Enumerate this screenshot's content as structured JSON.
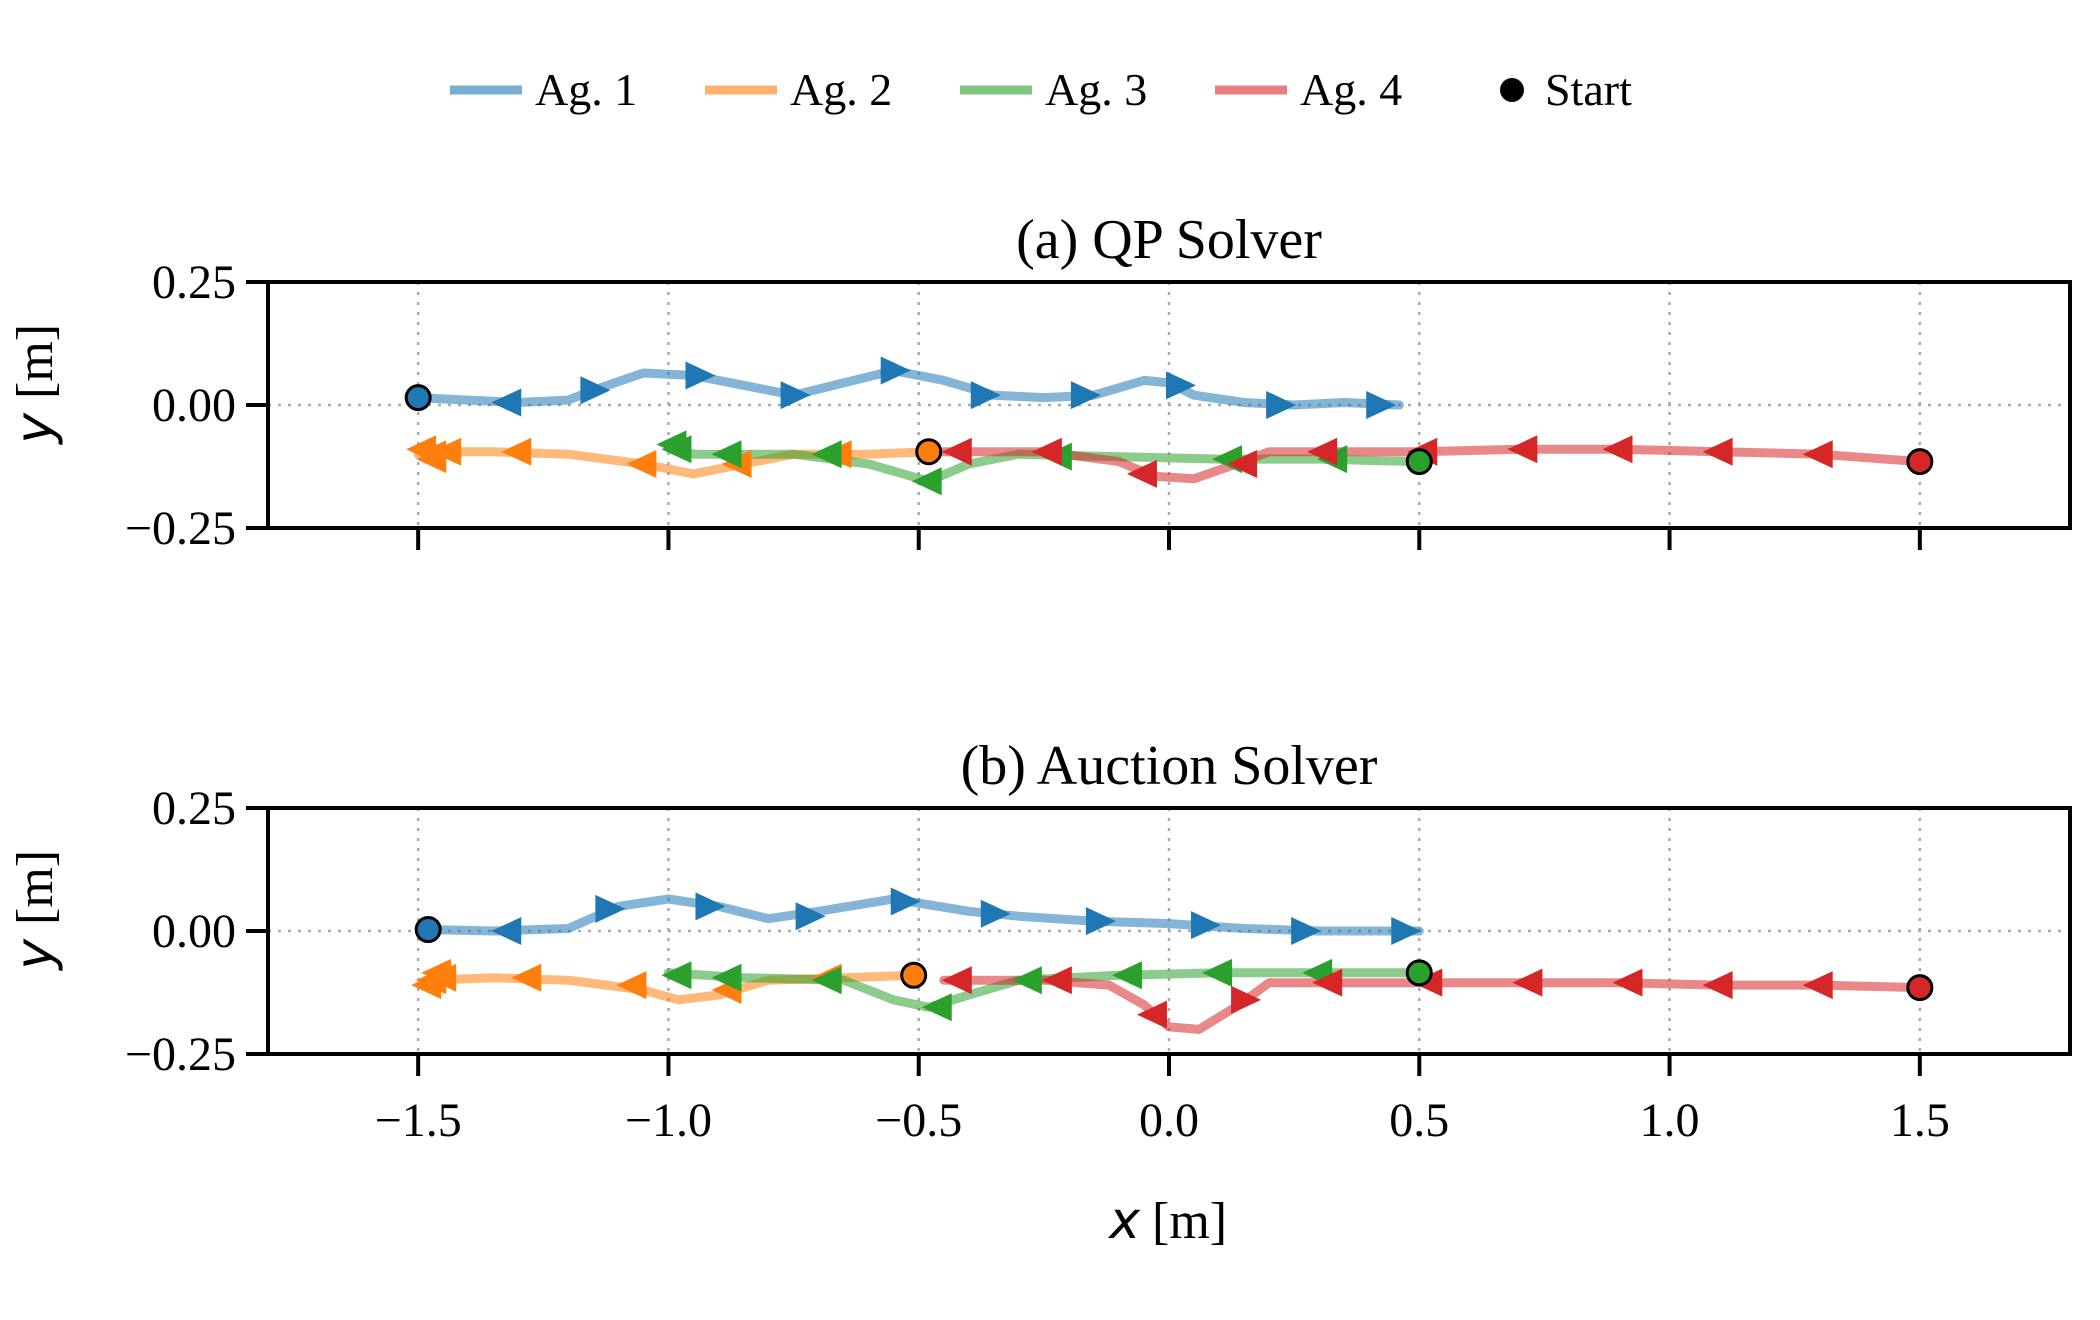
{
  "chart_data": {
    "type": "line",
    "legend": {
      "placement": "top-center",
      "entries": [
        {
          "label": "Ag. 1",
          "color": "#1f77b4",
          "kind": "line"
        },
        {
          "label": "Ag. 2",
          "color": "#ff7f0e",
          "kind": "line"
        },
        {
          "label": "Ag. 3",
          "color": "#2ca02c",
          "kind": "line"
        },
        {
          "label": "Ag. 4",
          "color": "#d62728",
          "kind": "line"
        },
        {
          "label": "Start",
          "color": "#000000",
          "kind": "marker"
        }
      ]
    },
    "xlabel_symbol": "x",
    "xlabel_unit": "[m]",
    "ylabel_symbol": "y",
    "ylabel_unit": "[m]",
    "xlim": [
      -1.8,
      1.8
    ],
    "ylim": [
      -0.25,
      0.25
    ],
    "xticks": [
      -1.5,
      -1.0,
      -0.5,
      0.0,
      0.5,
      1.0,
      1.5
    ],
    "xtick_labels": [
      "−1.5",
      "−1.0",
      "−0.5",
      "0.0",
      "0.5",
      "1.0",
      "1.5"
    ],
    "yticks": [
      0.25,
      0.0,
      -0.25
    ],
    "ytick_labels": [
      "0.25",
      "0.00",
      "−0.25"
    ],
    "grid": true,
    "panels": [
      {
        "title": "(a) QP Solver",
        "series": [
          {
            "name": "Ag. 1",
            "color": "#1f77b4",
            "start": [
              -1.5,
              0.015
            ],
            "points": [
              [
                -1.5,
                0.015
              ],
              [
                -1.4,
                0.01
              ],
              [
                -1.3,
                0.005
              ],
              [
                -1.2,
                0.01
              ],
              [
                -1.15,
                0.03
              ],
              [
                -1.05,
                0.065
              ],
              [
                -0.95,
                0.06
              ],
              [
                -0.85,
                0.04
              ],
              [
                -0.75,
                0.02
              ],
              [
                -0.65,
                0.045
              ],
              [
                -0.55,
                0.07
              ],
              [
                -0.45,
                0.05
              ],
              [
                -0.35,
                0.02
              ],
              [
                -0.25,
                0.015
              ],
              [
                -0.15,
                0.02
              ],
              [
                -0.05,
                0.05
              ],
              [
                0.0,
                0.045
              ],
              [
                0.05,
                0.02
              ],
              [
                0.15,
                0.005
              ],
              [
                0.25,
                0.0
              ],
              [
                0.35,
                0.005
              ],
              [
                0.46,
                0.0
              ]
            ],
            "arrows": [
              [
                -1.32,
                0.005,
                0
              ],
              [
                -1.15,
                0.03,
                1
              ],
              [
                -0.94,
                0.06,
                1
              ],
              [
                -0.75,
                0.02,
                1
              ],
              [
                -0.55,
                0.07,
                1
              ],
              [
                -0.37,
                0.02,
                1
              ],
              [
                -0.17,
                0.02,
                1
              ],
              [
                0.02,
                0.04,
                1
              ],
              [
                0.22,
                0.0,
                1
              ],
              [
                0.42,
                0.0,
                1
              ]
            ]
          },
          {
            "name": "Ag. 2",
            "color": "#ff7f0e",
            "start": [
              -0.48,
              -0.095
            ],
            "points": [
              [
                -0.48,
                -0.095
              ],
              [
                -0.6,
                -0.1
              ],
              [
                -0.75,
                -0.1
              ],
              [
                -0.85,
                -0.12
              ],
              [
                -0.95,
                -0.14
              ],
              [
                -1.05,
                -0.12
              ],
              [
                -1.2,
                -0.1
              ],
              [
                -1.35,
                -0.095
              ],
              [
                -1.45,
                -0.095
              ],
              [
                -1.5,
                -0.1
              ]
            ],
            "arrows": [
              [
                -0.66,
                -0.1,
                0
              ],
              [
                -0.86,
                -0.12,
                0
              ],
              [
                -1.05,
                -0.12,
                0
              ],
              [
                -1.3,
                -0.095,
                0
              ],
              [
                -1.44,
                -0.095,
                0
              ],
              [
                -1.47,
                -0.1,
                0
              ],
              [
                -1.49,
                -0.09,
                0
              ],
              [
                -1.47,
                -0.11,
                0
              ]
            ]
          },
          {
            "name": "Ag. 3",
            "color": "#2ca02c",
            "start": [
              0.5,
              -0.115
            ],
            "points": [
              [
                0.5,
                -0.115
              ],
              [
                0.3,
                -0.11
              ],
              [
                0.1,
                -0.11
              ],
              [
                -0.1,
                -0.105
              ],
              [
                -0.3,
                -0.1
              ],
              [
                -0.4,
                -0.12
              ],
              [
                -0.48,
                -0.155
              ],
              [
                -0.6,
                -0.12
              ],
              [
                -0.75,
                -0.1
              ],
              [
                -0.95,
                -0.1
              ],
              [
                -1.0,
                -0.085
              ]
            ],
            "arrows": [
              [
                0.33,
                -0.11,
                0
              ],
              [
                0.12,
                -0.11,
                0
              ],
              [
                -0.22,
                -0.105,
                0
              ],
              [
                -0.48,
                -0.155,
                0
              ],
              [
                -0.68,
                -0.1,
                0
              ],
              [
                -0.88,
                -0.1,
                0
              ],
              [
                -0.98,
                -0.09,
                0
              ],
              [
                -0.99,
                -0.08,
                0
              ]
            ]
          },
          {
            "name": "Ag. 4",
            "color": "#d62728",
            "start": [
              1.5,
              -0.115
            ],
            "points": [
              [
                1.5,
                -0.115
              ],
              [
                1.3,
                -0.1
              ],
              [
                1.1,
                -0.095
              ],
              [
                0.9,
                -0.09
              ],
              [
                0.7,
                -0.09
              ],
              [
                0.5,
                -0.095
              ],
              [
                0.3,
                -0.095
              ],
              [
                0.2,
                -0.095
              ],
              [
                0.12,
                -0.125
              ],
              [
                0.05,
                -0.15
              ],
              [
                -0.03,
                -0.145
              ],
              [
                -0.1,
                -0.115
              ],
              [
                -0.25,
                -0.095
              ],
              [
                -0.45,
                -0.095
              ]
            ],
            "arrows": [
              [
                1.3,
                -0.1,
                0
              ],
              [
                1.1,
                -0.095,
                0
              ],
              [
                0.9,
                -0.09,
                0
              ],
              [
                0.71,
                -0.09,
                0
              ],
              [
                0.51,
                -0.095,
                0
              ],
              [
                0.31,
                -0.095,
                0
              ],
              [
                0.15,
                -0.12,
                0
              ],
              [
                -0.05,
                -0.14,
                0
              ],
              [
                -0.24,
                -0.095,
                0
              ],
              [
                -0.42,
                -0.095,
                0
              ]
            ]
          }
        ]
      },
      {
        "title": "(b) Auction Solver",
        "series": [
          {
            "name": "Ag. 1",
            "color": "#1f77b4",
            "start": [
              -1.48,
              0.003
            ],
            "points": [
              [
                -1.48,
                0.003
              ],
              [
                -1.35,
                0.0
              ],
              [
                -1.2,
                0.005
              ],
              [
                -1.1,
                0.05
              ],
              [
                -1.0,
                0.065
              ],
              [
                -0.9,
                0.05
              ],
              [
                -0.8,
                0.025
              ],
              [
                -0.7,
                0.04
              ],
              [
                -0.55,
                0.065
              ],
              [
                -0.4,
                0.04
              ],
              [
                -0.3,
                0.03
              ],
              [
                -0.15,
                0.02
              ],
              [
                0.0,
                0.015
              ],
              [
                0.15,
                0.005
              ],
              [
                0.3,
                0.0
              ],
              [
                0.5,
                0.0
              ]
            ],
            "arrows": [
              [
                -1.32,
                0.0,
                0
              ],
              [
                -1.12,
                0.045,
                1
              ],
              [
                -0.92,
                0.05,
                1
              ],
              [
                -0.72,
                0.03,
                1
              ],
              [
                -0.53,
                0.06,
                1
              ],
              [
                -0.35,
                0.035,
                1
              ],
              [
                -0.14,
                0.02,
                1
              ],
              [
                0.07,
                0.012,
                1
              ],
              [
                0.27,
                0.0,
                1
              ],
              [
                0.47,
                0.0,
                1
              ]
            ]
          },
          {
            "name": "Ag. 2",
            "color": "#ff7f0e",
            "start": [
              -0.51,
              -0.09
            ],
            "points": [
              [
                -0.51,
                -0.09
              ],
              [
                -0.65,
                -0.095
              ],
              [
                -0.8,
                -0.1
              ],
              [
                -0.9,
                -0.13
              ],
              [
                -0.98,
                -0.14
              ],
              [
                -1.05,
                -0.12
              ],
              [
                -1.2,
                -0.1
              ],
              [
                -1.35,
                -0.095
              ],
              [
                -1.48,
                -0.1
              ]
            ],
            "arrows": [
              [
                -0.68,
                -0.095,
                0
              ],
              [
                -0.88,
                -0.12,
                0
              ],
              [
                -1.07,
                -0.11,
                0
              ],
              [
                -1.28,
                -0.095,
                0
              ],
              [
                -1.45,
                -0.095,
                0
              ],
              [
                -1.47,
                -0.1,
                0
              ],
              [
                -1.48,
                -0.11,
                0
              ],
              [
                -1.46,
                -0.085,
                0
              ]
            ]
          },
          {
            "name": "Ag. 3",
            "color": "#2ca02c",
            "start": [
              0.5,
              -0.085
            ],
            "points": [
              [
                0.5,
                -0.085
              ],
              [
                0.3,
                -0.085
              ],
              [
                0.1,
                -0.085
              ],
              [
                -0.1,
                -0.09
              ],
              [
                -0.3,
                -0.1
              ],
              [
                -0.4,
                -0.13
              ],
              [
                -0.48,
                -0.155
              ],
              [
                -0.55,
                -0.14
              ],
              [
                -0.65,
                -0.1
              ],
              [
                -0.85,
                -0.095
              ],
              [
                -1.0,
                -0.085
              ]
            ],
            "arrows": [
              [
                0.3,
                -0.085,
                0
              ],
              [
                0.1,
                -0.085,
                0
              ],
              [
                -0.08,
                -0.09,
                0
              ],
              [
                -0.28,
                -0.1,
                0
              ],
              [
                -0.46,
                -0.155,
                0
              ],
              [
                -0.68,
                -0.1,
                0
              ],
              [
                -0.88,
                -0.095,
                0
              ],
              [
                -0.98,
                -0.09,
                0
              ]
            ]
          },
          {
            "name": "Ag. 4",
            "color": "#d62728",
            "start": [
              1.5,
              -0.115
            ],
            "points": [
              [
                1.5,
                -0.115
              ],
              [
                1.3,
                -0.11
              ],
              [
                1.1,
                -0.11
              ],
              [
                0.9,
                -0.105
              ],
              [
                0.7,
                -0.105
              ],
              [
                0.5,
                -0.105
              ],
              [
                0.3,
                -0.105
              ],
              [
                0.2,
                -0.105
              ],
              [
                0.14,
                -0.15
              ],
              [
                0.06,
                -0.2
              ],
              [
                0.0,
                -0.195
              ],
              [
                -0.05,
                -0.15
              ],
              [
                -0.12,
                -0.11
              ],
              [
                -0.25,
                -0.1
              ],
              [
                -0.45,
                -0.1
              ]
            ],
            "arrows": [
              [
                1.3,
                -0.11,
                0
              ],
              [
                1.1,
                -0.11,
                0
              ],
              [
                0.92,
                -0.105,
                0
              ],
              [
                0.72,
                -0.105,
                0
              ],
              [
                0.52,
                -0.105,
                0
              ],
              [
                0.32,
                -0.105,
                0
              ],
              [
                0.15,
                -0.14,
                1
              ],
              [
                -0.03,
                -0.17,
                0
              ],
              [
                -0.22,
                -0.1,
                0
              ],
              [
                -0.42,
                -0.1,
                0
              ]
            ]
          }
        ]
      }
    ]
  }
}
